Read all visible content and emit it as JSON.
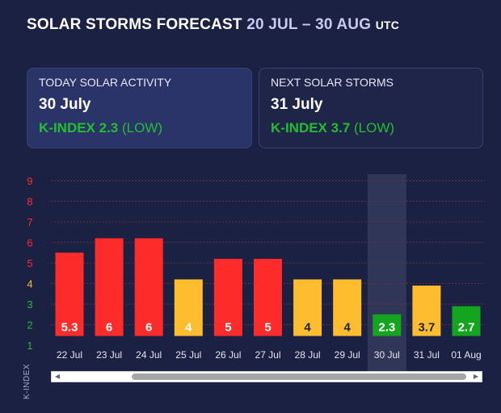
{
  "header": {
    "title": "SOLAR STORMS FORECAST",
    "range": "20 JUL – 30 AUG",
    "tz": "UTC"
  },
  "cards": {
    "today": {
      "label": "TODAY SOLAR ACTIVITY",
      "date": "30 July",
      "kindex": "K-INDEX 2.3",
      "level": "(LOW)"
    },
    "next": {
      "label": "NEXT SOLAR STORMS",
      "date": "31 July",
      "kindex": "K-INDEX 3.7",
      "level": "(LOW)"
    }
  },
  "colors": {
    "high": "#fe2b2b",
    "moderate": "#fdbd2e",
    "low": "#14a51e",
    "background": "#1b2143"
  },
  "chart_data": {
    "type": "bar",
    "ylabel": "K-INDEX",
    "ylim": [
      1,
      9
    ],
    "yticks": [
      1,
      2,
      3,
      4,
      5,
      6,
      7,
      8,
      9
    ],
    "ytick_colors": {
      "1": "#22bf2e",
      "2": "#22bf2e",
      "3": "#22bf2e",
      "4": "#fdbd2e",
      "5": "#fe2b2b",
      "6": "#fe2b2b",
      "7": "#fe2b2b",
      "8": "#fe2b2b",
      "9": "#fe2b2b"
    },
    "categories": [
      "22 Jul",
      "23 Jul",
      "24 Jul",
      "25 Jul",
      "26 Jul",
      "27 Jul",
      "28 Jul",
      "29 Jul",
      "30 Jul",
      "31 Jul",
      "01 Aug"
    ],
    "values": [
      5.3,
      6,
      6,
      4,
      5,
      5,
      4,
      4,
      2.3,
      3.7,
      2.7
    ],
    "labels": [
      "5.3",
      "6",
      "6",
      "4",
      "5",
      "5",
      "4",
      "4",
      "2.3",
      "3.7",
      "2.7"
    ],
    "label_colors": [
      "#ffffff",
      "#ffffff",
      "#ffffff",
      "#ffffff",
      "#ffffff",
      "#ffffff",
      "#1b2143",
      "#1b2143",
      "#ffffff",
      "#1b2143",
      "#ffffff"
    ],
    "bar_colors": [
      "#fe2b2b",
      "#fe2b2b",
      "#fe2b2b",
      "#fdbd2e",
      "#fe2b2b",
      "#fe2b2b",
      "#fdbd2e",
      "#fdbd2e",
      "#14a51e",
      "#fdbd2e",
      "#14a51e"
    ],
    "highlighted": "30 Jul",
    "grid": true
  }
}
